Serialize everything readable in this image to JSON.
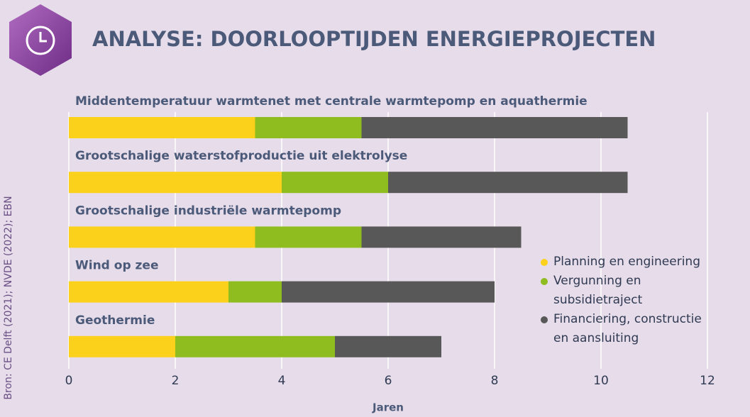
{
  "title": "ANALYSE: DOORLOOPTIJDEN ENERGIEPROJECTEN",
  "source": "Bron: CE Delft (2021); NVDE (2022); EBN",
  "chart_data": {
    "type": "stacked-barh",
    "categories": [
      "Middentemperatuur warmtenet met centrale warmtepomp en aquathermie",
      "Grootschalige waterstofproductie uit elektrolyse",
      "Grootschalige industriële warmtepomp",
      "Wind op zee",
      "Geothermie"
    ],
    "series": [
      {
        "name": "Planning en engineering",
        "color": "#fcd11b",
        "values": [
          3.5,
          4,
          3.5,
          3,
          2
        ]
      },
      {
        "name": "Vergunning en subsidietraject",
        "color": "#8fbc1f",
        "values": [
          2,
          2,
          2,
          1,
          3
        ]
      },
      {
        "name": "Financiering, constructie en aansluiting",
        "color": "#585858",
        "values": [
          5,
          4.5,
          3,
          4,
          2
        ]
      }
    ],
    "xlabel": "Jaren",
    "xlim": [
      0,
      12
    ],
    "xticks": [
      0,
      2,
      4,
      6,
      8,
      10,
      12
    ],
    "grid": true
  }
}
